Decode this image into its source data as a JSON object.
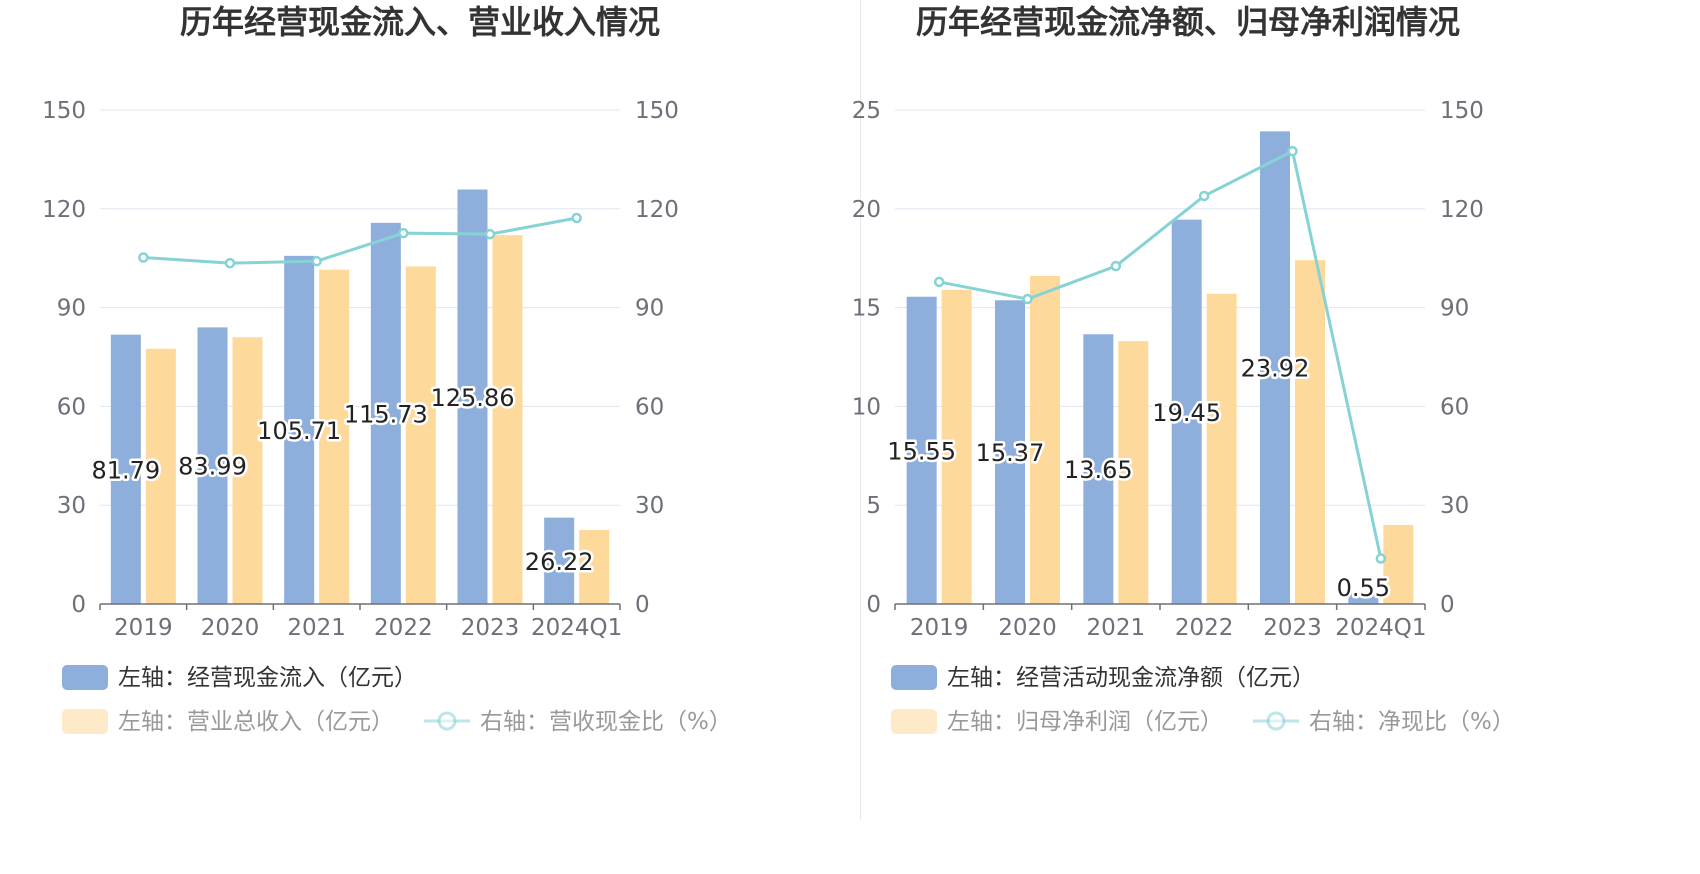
{
  "colors": {
    "bar_a": "#8eaedc",
    "bar_b": "#fed99c",
    "line": "#86d2d5",
    "grid": "#e0e6f1",
    "axis": "#6e7079",
    "legend_active": "#333333",
    "legend_inactive": "#999999"
  },
  "chart_data": [
    {
      "type": "bar",
      "title": "历年经营现金流入、营业收入情况",
      "categories": [
        "2019",
        "2020",
        "2021",
        "2022",
        "2023",
        "2024Q1"
      ],
      "ylim_left": [
        0,
        150
      ],
      "yticks_left": [
        0,
        30,
        60,
        90,
        120,
        150
      ],
      "ylim_right": [
        0,
        150
      ],
      "yticks_right": [
        0,
        30,
        60,
        90,
        120,
        150
      ],
      "grid": true,
      "legend_position": "bottom-left",
      "series": [
        {
          "name": "左轴：经营现金流入（亿元）",
          "kind": "bar",
          "axis": "left",
          "values": [
            81.79,
            83.99,
            105.71,
            115.73,
            125.86,
            26.22
          ],
          "labels": true,
          "active": true
        },
        {
          "name": "左轴：营业总收入（亿元）",
          "kind": "bar",
          "axis": "left",
          "values": [
            77.5,
            81.0,
            101.5,
            102.5,
            112.0,
            22.5
          ],
          "labels": false,
          "active": false
        },
        {
          "name": "右轴：营收现金比（%）",
          "kind": "line",
          "axis": "right",
          "values": [
            105.2,
            103.5,
            104.1,
            112.6,
            112.3,
            117.2
          ],
          "active": false
        }
      ],
      "data_labels": [
        "81.79",
        "83.99",
        "105.71",
        "115.73",
        "125.86",
        "26.22"
      ]
    },
    {
      "type": "bar",
      "title": "历年经营现金流净额、归母净利润情况",
      "categories": [
        "2019",
        "2020",
        "2021",
        "2022",
        "2023",
        "2024Q1"
      ],
      "ylim_left": [
        0,
        25
      ],
      "yticks_left": [
        0,
        5,
        10,
        15,
        20,
        25
      ],
      "ylim_right": [
        0,
        150
      ],
      "yticks_right": [
        0,
        30,
        60,
        90,
        120,
        150
      ],
      "grid": true,
      "legend_position": "bottom-left",
      "series": [
        {
          "name": "左轴：经营活动现金流净额（亿元）",
          "kind": "bar",
          "axis": "left",
          "values": [
            15.55,
            15.37,
            13.65,
            19.45,
            23.92,
            0.55
          ],
          "labels": true,
          "active": true
        },
        {
          "name": "左轴：归母净利润（亿元）",
          "kind": "bar",
          "axis": "left",
          "values": [
            15.9,
            16.6,
            13.3,
            15.7,
            17.4,
            4.0
          ],
          "labels": false,
          "active": false
        },
        {
          "name": "右轴：净现比（%）",
          "kind": "line",
          "axis": "right",
          "values": [
            97.8,
            92.6,
            102.6,
            123.9,
            137.5,
            13.8
          ],
          "active": false
        }
      ],
      "data_labels": [
        "15.55",
        "15.37",
        "13.65",
        "19.45",
        "23.92",
        "0.55"
      ]
    }
  ]
}
